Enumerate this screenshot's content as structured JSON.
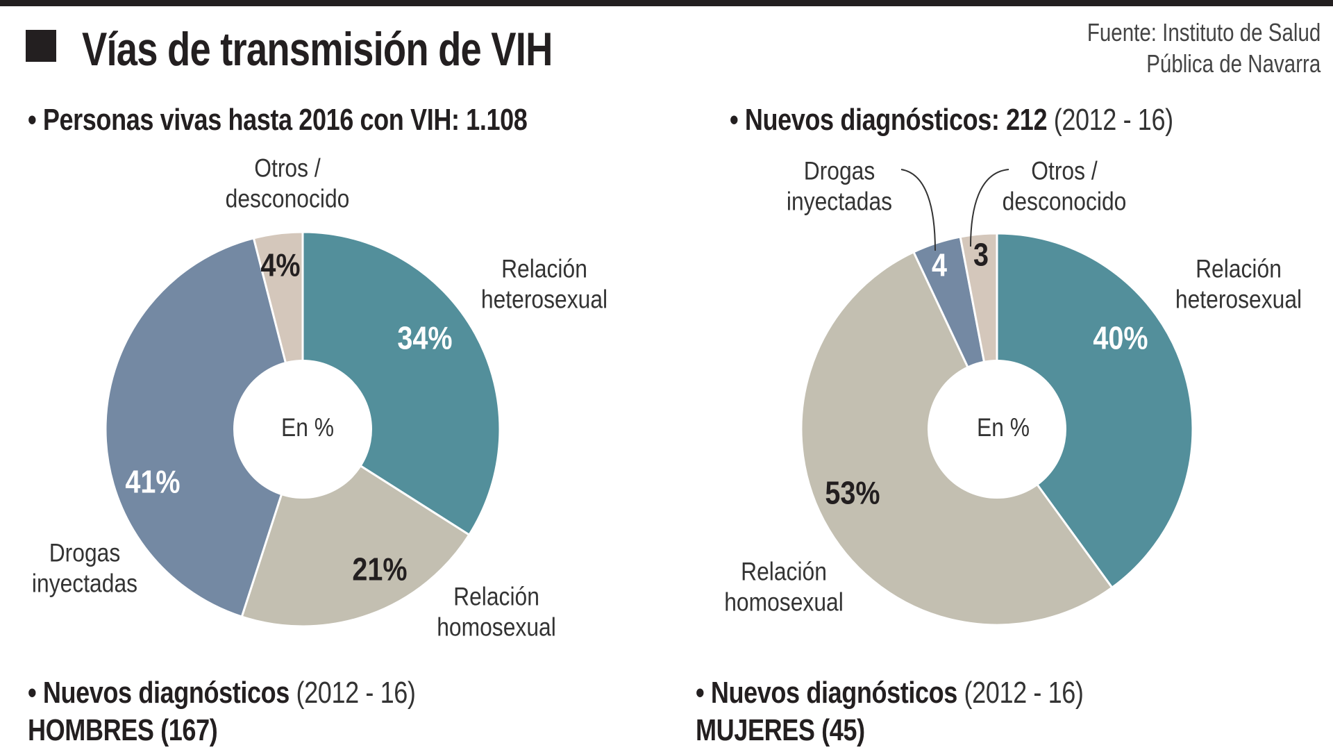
{
  "title": "Vías de transmisión de VIH",
  "source": [
    "Fuente: Instituto de Salud",
    "Pública de Navarra"
  ],
  "colors": {
    "heterosexual": "#538f9b",
    "homosexual": "#c3bfb1",
    "drogas": "#7489a3",
    "otros": "#d4c7bb"
  },
  "left": {
    "subtitle_bold": "• Personas vivas hasta 2016 con VIH: 1.108",
    "center_label": "En %",
    "labels": {
      "otros": [
        "Otros /",
        "desconocido"
      ],
      "heterosexual": [
        "Relación",
        "heterosexual"
      ],
      "drogas": [
        "Drogas",
        "inyectadas"
      ],
      "homosexual": [
        "Relación",
        "homosexual"
      ]
    },
    "value_labels": {
      "heterosexual": "34%",
      "homosexual": "21%",
      "drogas": "41%",
      "otros": "4%"
    }
  },
  "right": {
    "subtitle_bold": "• Nuevos diagnósticos: 212",
    "subtitle_normal": " (2012 - 16)",
    "center_label": "En %",
    "labels": {
      "drogas": [
        "Drogas",
        "inyectadas"
      ],
      "otros": [
        "Otros /",
        "desconocido"
      ],
      "heterosexual": [
        "Relación",
        "heterosexual"
      ],
      "homosexual": [
        "Relación",
        "homosexual"
      ]
    },
    "value_labels": {
      "heterosexual": "40%",
      "homosexual": "53%",
      "drogas": "4",
      "otros": "3"
    }
  },
  "bottom": {
    "left": {
      "bold": "• Nuevos diagnósticos",
      "normal": " (2012 - 16)",
      "group": "HOMBRES (167)"
    },
    "right": {
      "bold": "• Nuevos diagnósticos",
      "normal": " (2012 - 16)",
      "group": "MUJERES (45)"
    }
  },
  "chart_data": [
    {
      "type": "pie",
      "subtitle": "Personas vivas hasta 2016 con VIH: 1.108",
      "unit": "En %",
      "categories": [
        "Relación heterosexual",
        "Relación homosexual",
        "Drogas inyectadas",
        "Otros / desconocido"
      ],
      "values": [
        34,
        21,
        41,
        4
      ]
    },
    {
      "type": "pie",
      "subtitle": "Nuevos diagnósticos: 212 (2012 - 16)",
      "unit": "En %",
      "categories": [
        "Relación heterosexual",
        "Relación homosexual",
        "Drogas inyectadas",
        "Otros / desconocido"
      ],
      "values": [
        40,
        53,
        4,
        3
      ]
    }
  ]
}
